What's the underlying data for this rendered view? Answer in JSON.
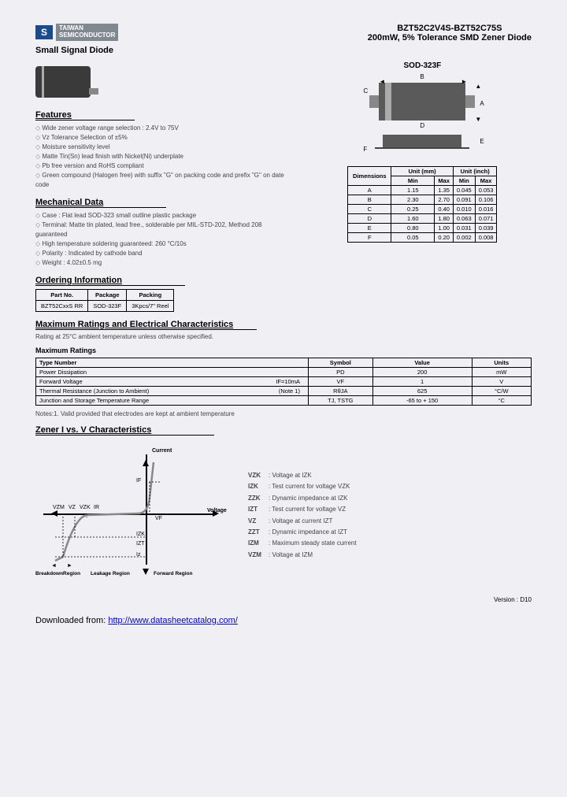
{
  "logo": {
    "icon": "S",
    "text1": "TAIWAN",
    "text2": "SEMICONDUCTOR"
  },
  "title": {
    "line1": "BZT52C2V4S-BZT52C75S",
    "line2": "200mW, 5% Tolerance SMD Zener Diode"
  },
  "subtitle": "Small Signal Diode",
  "package_name": "SOD-323F",
  "features": {
    "heading": "Features",
    "items": [
      "Wide zener voltage range selection : 2.4V to 75V",
      "Vz Tolerance Selection of ±5%",
      "Moisture sensitivity level",
      "Matte Tin(Sn) lead finish with Nickel(Ni) underplate",
      "Pb free version and RoHS compliant",
      "Green compound (Halogen free) with suffix \"G\" on packing code and prefix \"G\" on date code"
    ]
  },
  "mechanical": {
    "heading": "Mechanical Data",
    "items": [
      "Case : Flat lead SOD-323 small outline plastic package",
      "Terminal: Matte tin plated, lead free., solderable per MIL-STD-202, Method 208 guaranteed",
      "High temperature soldering guaranteed: 260 °C/10s",
      "Polarity : Indicated by cathode band",
      "Weight : 4.02±0.5 mg"
    ]
  },
  "dimensions": {
    "header": {
      "h1": "Dimensions",
      "h2": "Unit (mm)",
      "h3": "Unit (inch)",
      "min": "Min",
      "max": "Max"
    },
    "rows": [
      {
        "d": "A",
        "mm_min": "1.15",
        "mm_max": "1.35",
        "in_min": "0.045",
        "in_max": "0.053"
      },
      {
        "d": "B",
        "mm_min": "2.30",
        "mm_max": "2.70",
        "in_min": "0.091",
        "in_max": "0.106"
      },
      {
        "d": "C",
        "mm_min": "0.25",
        "mm_max": "0.40",
        "in_min": "0.010",
        "in_max": "0.016"
      },
      {
        "d": "D",
        "mm_min": "1.60",
        "mm_max": "1.80",
        "in_min": "0.063",
        "in_max": "0.071"
      },
      {
        "d": "E",
        "mm_min": "0.80",
        "mm_max": "1.00",
        "in_min": "0.031",
        "in_max": "0.039"
      },
      {
        "d": "F",
        "mm_min": "0.05",
        "mm_max": "0.20",
        "in_min": "0.002",
        "in_max": "0.008"
      }
    ]
  },
  "ordering": {
    "heading": "Ordering Information",
    "headers": [
      "Part No.",
      "Package",
      "Packing"
    ],
    "row": [
      "BZT52CxxS RR",
      "SOD-323F",
      "3Kpcs/7\" Reel"
    ]
  },
  "maxratings": {
    "heading": "Maximum Ratings and Electrical Characteristics",
    "note": "Rating at 25°C ambient temperature unless otherwise specified.",
    "sub": "Maximum Ratings",
    "headers": [
      "Type Number",
      "Symbol",
      "Value",
      "Units"
    ],
    "rows": [
      {
        "n": "Power Dissipation",
        "n2": "",
        "s": "PD",
        "v": "200",
        "u": "mW"
      },
      {
        "n": "Forward Voltage",
        "n2": "IF=10mA",
        "s": "VF",
        "v": "1",
        "u": "V"
      },
      {
        "n": "Thermal Resistance (Junction to Ambient)",
        "n2": "(Note 1)",
        "s": "RθJA",
        "v": "625",
        "u": "°C/W"
      },
      {
        "n": "Junction and Storage Temperature Range",
        "n2": "",
        "s": "TJ, TSTG",
        "v": "-65 to + 150",
        "u": "°C"
      }
    ],
    "foot": "Notes:1. Valid provided that electrodes are kept at ambient temperature"
  },
  "iv": {
    "heading": "Zener I vs. V Characteristics",
    "axis_c": "Current",
    "axis_v": "Voltage",
    "labels": {
      "Iz": "Iz",
      "Izt": "IZT",
      "Izk": "IZK",
      "Vzm": "VZM",
      "Vz": "VZ",
      "Vzt": "VZT",
      "Vzk": "VZK",
      "Vf": "VF",
      "If": "IF",
      "Ir": "IR"
    },
    "regions": {
      "br": "BreakdownRegion",
      "lr": "Leakage Region",
      "fr": "Forward Region"
    },
    "legend": [
      {
        "s": "VZK",
        "d": ": Voltage at IZK"
      },
      {
        "s": "IZK",
        "d": ": Test current for voltage VZK"
      },
      {
        "s": "ZZK",
        "d": ": Dynamic impedance at IZK"
      },
      {
        "s": "IZT",
        "d": ": Test current for voltage VZ"
      },
      {
        "s": "VZ",
        "d": ": Voltage at current IZT"
      },
      {
        "s": "ZZT",
        "d": ": Dynamic impedance at IZT"
      },
      {
        "s": "IZM",
        "d": ": Maximum steady state current"
      },
      {
        "s": "VZM",
        "d": ": Voltage at IZM"
      }
    ]
  },
  "version": "Version : D10",
  "download": {
    "prefix": "Downloaded from: ",
    "url": "http://www.datasheetcatalog.com/"
  }
}
